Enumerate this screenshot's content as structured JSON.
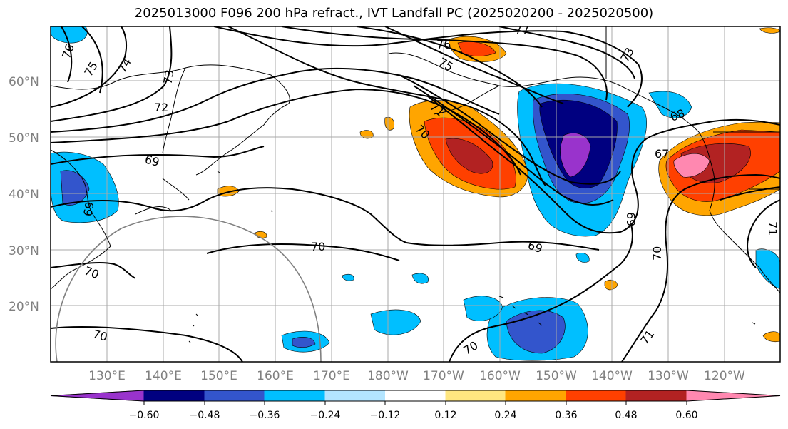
{
  "title": "2025013000 F096 200 hPa refract., IVT Landfall PC (2025020200 - 2025020500)",
  "lat_labels": [
    "60°N",
    "50°N",
    "40°N",
    "30°N",
    "20°N"
  ],
  "lon_labels": [
    "130°E",
    "140°E",
    "150°E",
    "160°E",
    "170°E",
    "180°W",
    "170°W",
    "160°W",
    "150°W",
    "140°W",
    "130°W",
    "120°W"
  ],
  "colorbar": {
    "colors": [
      "#9933cc",
      "#000080",
      "#3355cc",
      "#00bfff",
      "#b3e5ff",
      "#ffffff",
      "#ffe680",
      "#ffa500",
      "#ff4000",
      "#b22222",
      "#ff88b0"
    ],
    "tick_labels": [
      "−0.60",
      "−0.48",
      "−0.36",
      "−0.24",
      "−0.12",
      "0.12",
      "0.24",
      "0.36",
      "0.48",
      "0.60"
    ]
  },
  "contour_labels": [
    "76",
    "75",
    "74",
    "73",
    "72",
    "69",
    "76",
    "75",
    "71",
    "70",
    "68",
    "67",
    "69",
    "69",
    "70",
    "70",
    "70",
    "70",
    "71",
    "71",
    "69",
    "70",
    "73",
    "77"
  ]
}
